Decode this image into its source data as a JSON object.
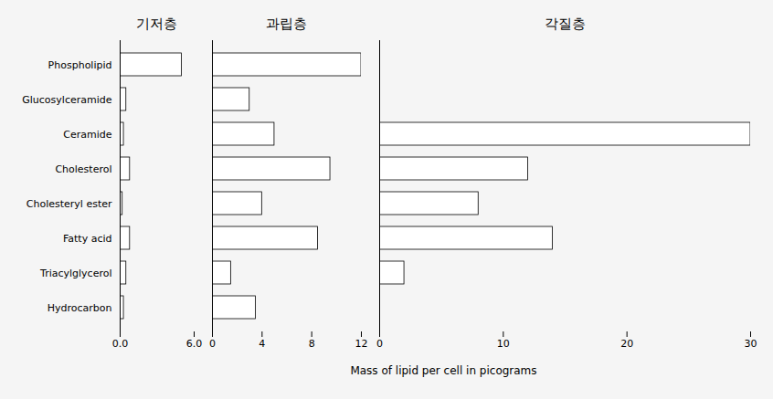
{
  "chart_data": [
    {
      "type": "bar",
      "orientation": "horizontal",
      "title": "기저층",
      "categories": [
        "Phospholipid",
        "Glucosylceramide",
        "Ceramide",
        "Cholesterol",
        "Cholesteryl ester",
        "Fatty acid",
        "Triacylglycerol",
        "Hydrocarbon"
      ],
      "values": [
        5.0,
        0.5,
        0.3,
        0.8,
        0.2,
        0.8,
        0.5,
        0.3
      ],
      "color": "white",
      "xlim": [
        0,
        6
      ],
      "xticks": [
        0,
        6
      ],
      "grid": false
    },
    {
      "type": "bar",
      "orientation": "horizontal",
      "title": "과립층",
      "categories": [
        "Phospholipid",
        "Glucosylceramide",
        "Ceramide",
        "Cholesterol",
        "Cholesteryl ester",
        "Fatty acid",
        "Triacylglycerol",
        "Hydrocarbon"
      ],
      "values": [
        12.0,
        3.0,
        5.0,
        9.5,
        4.0,
        8.5,
        1.5,
        3.5
      ],
      "color": "white",
      "xlim": [
        0,
        12
      ],
      "xticks": [
        0,
        4,
        8,
        12
      ],
      "grid": false,
      "tick_labels": "x"
    },
    {
      "type": "bar",
      "orientation": "horizontal",
      "title": "각질층",
      "xlabel": "Mass of lipid per cell in picograms",
      "categories": [
        "Phospholipid",
        "Glucosylceramide",
        "Ceramide",
        "Cholesterol",
        "Cholesteryl ester",
        "Fatty acid",
        "Triacylglycerol",
        "Hydrocarbon"
      ],
      "values": [
        0.0,
        0.0,
        30.0,
        12.0,
        8.0,
        14.0,
        2.0,
        0.0
      ],
      "color": "white",
      "xlim": [
        0,
        30
      ],
      "xticks": [
        0,
        10,
        20,
        30
      ],
      "grid": false,
      "tick_labels": "x"
    }
  ]
}
